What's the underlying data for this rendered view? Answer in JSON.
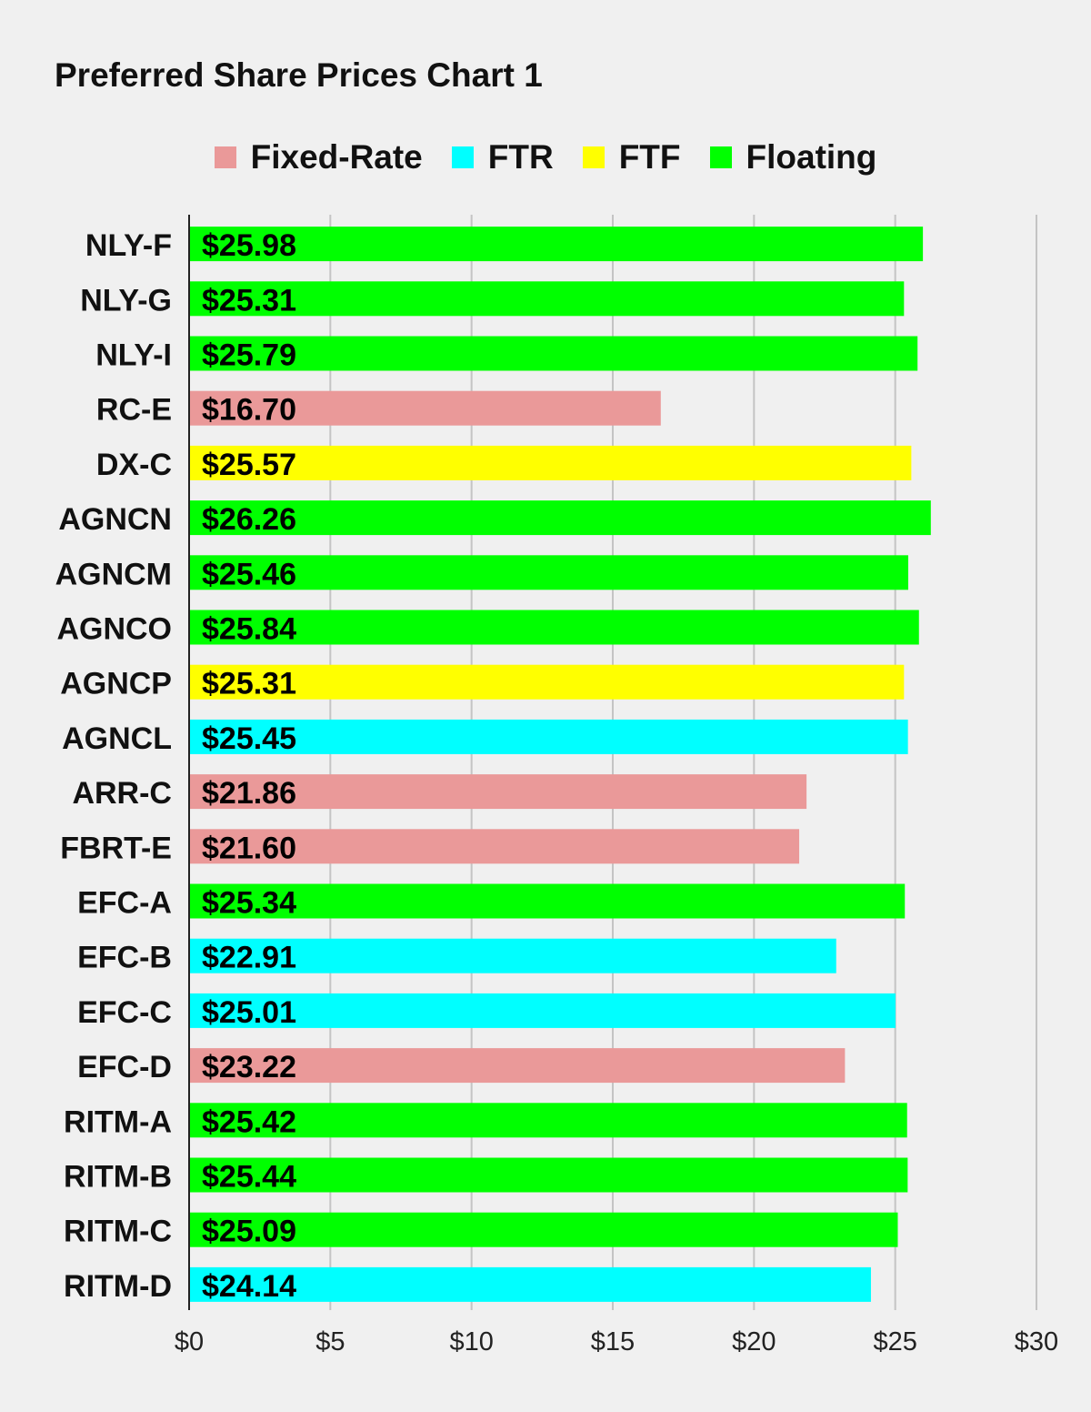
{
  "chart_data": {
    "type": "bar",
    "orientation": "horizontal",
    "title": "Preferred Share Prices Chart 1",
    "xlim": [
      0,
      30
    ],
    "x_ticks": [
      0,
      5,
      10,
      15,
      20,
      25,
      30
    ],
    "x_tick_labels": [
      "$0",
      "$5",
      "$10",
      "$15",
      "$20",
      "$25",
      "$30"
    ],
    "grid": "vertical",
    "legend_position": "top-center",
    "legend": [
      {
        "label": "Fixed-Rate",
        "color": "#ea9999"
      },
      {
        "label": "FTR",
        "color": "#00ffff"
      },
      {
        "label": "FTF",
        "color": "#ffff00"
      },
      {
        "label": "Floating",
        "color": "#00ff00"
      }
    ],
    "bars": [
      {
        "category": "NLY-F",
        "value": 25.98,
        "label": "$25.98",
        "type": "Floating"
      },
      {
        "category": "NLY-G",
        "value": 25.31,
        "label": "$25.31",
        "type": "Floating"
      },
      {
        "category": "NLY-I",
        "value": 25.79,
        "label": "$25.79",
        "type": "Floating"
      },
      {
        "category": "RC-E",
        "value": 16.7,
        "label": "$16.70",
        "type": "Fixed-Rate"
      },
      {
        "category": "DX-C",
        "value": 25.57,
        "label": "$25.57",
        "type": "FTF"
      },
      {
        "category": "AGNCN",
        "value": 26.26,
        "label": "$26.26",
        "type": "Floating"
      },
      {
        "category": "AGNCM",
        "value": 25.46,
        "label": "$25.46",
        "type": "Floating"
      },
      {
        "category": "AGNCO",
        "value": 25.84,
        "label": "$25.84",
        "type": "Floating"
      },
      {
        "category": "AGNCP",
        "value": 25.31,
        "label": "$25.31",
        "type": "FTF"
      },
      {
        "category": "AGNCL",
        "value": 25.45,
        "label": "$25.45",
        "type": "FTR"
      },
      {
        "category": "ARR-C",
        "value": 21.86,
        "label": "$21.86",
        "type": "Fixed-Rate"
      },
      {
        "category": "FBRT-E",
        "value": 21.6,
        "label": "$21.60",
        "type": "Fixed-Rate"
      },
      {
        "category": "EFC-A",
        "value": 25.34,
        "label": "$25.34",
        "type": "Floating"
      },
      {
        "category": "EFC-B",
        "value": 22.91,
        "label": "$22.91",
        "type": "FTR"
      },
      {
        "category": "EFC-C",
        "value": 25.01,
        "label": "$25.01",
        "type": "FTR"
      },
      {
        "category": "EFC-D",
        "value": 23.22,
        "label": "$23.22",
        "type": "Fixed-Rate"
      },
      {
        "category": "RITM-A",
        "value": 25.42,
        "label": "$25.42",
        "type": "Floating"
      },
      {
        "category": "RITM-B",
        "value": 25.44,
        "label": "$25.44",
        "type": "Floating"
      },
      {
        "category": "RITM-C",
        "value": 25.09,
        "label": "$25.09",
        "type": "Floating"
      },
      {
        "category": "RITM-D",
        "value": 24.14,
        "label": "$24.14",
        "type": "FTR"
      }
    ]
  }
}
